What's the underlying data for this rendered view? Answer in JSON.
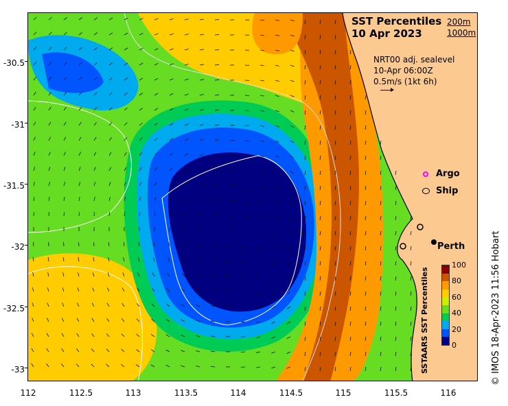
{
  "map": {
    "title_line1": "SST Percentiles",
    "title_line2": "10 Apr 2023",
    "contour_key": [
      "200m",
      "1000m"
    ],
    "sealevel_lines": [
      "NRT00 adj. sealevel",
      "10-Apr 06:00Z",
      "0.5m/s (1kt 6h)"
    ],
    "legend": [
      {
        "label": "Argo",
        "marker_color": "#ff00ff"
      },
      {
        "label": "Ship",
        "marker_color": "#000000"
      }
    ],
    "place_label": "Perth",
    "colorbar_title": "SSTAARS SST Percentiles",
    "colorbar_ticks": [
      "100",
      "80",
      "60",
      "40",
      "20",
      "0"
    ],
    "colorbar_colors": [
      "#8b0000",
      "#cc5500",
      "#ff9900",
      "#ffcc00",
      "#ccee00",
      "#66dd22",
      "#00cc55",
      "#00aaee",
      "#0055ff",
      "#000080"
    ],
    "credit": "© IMOS 18-Apr-2023 11:56 Hobart",
    "x_ticks": [
      "112",
      "112.5",
      "113",
      "113.5",
      "114",
      "114.5",
      "115",
      "115.5",
      "116"
    ],
    "y_ticks": [
      "-30.5",
      "-31",
      "-31.5",
      "-32",
      "-32.5",
      "-33"
    ],
    "land_color": "#fcc990"
  }
}
